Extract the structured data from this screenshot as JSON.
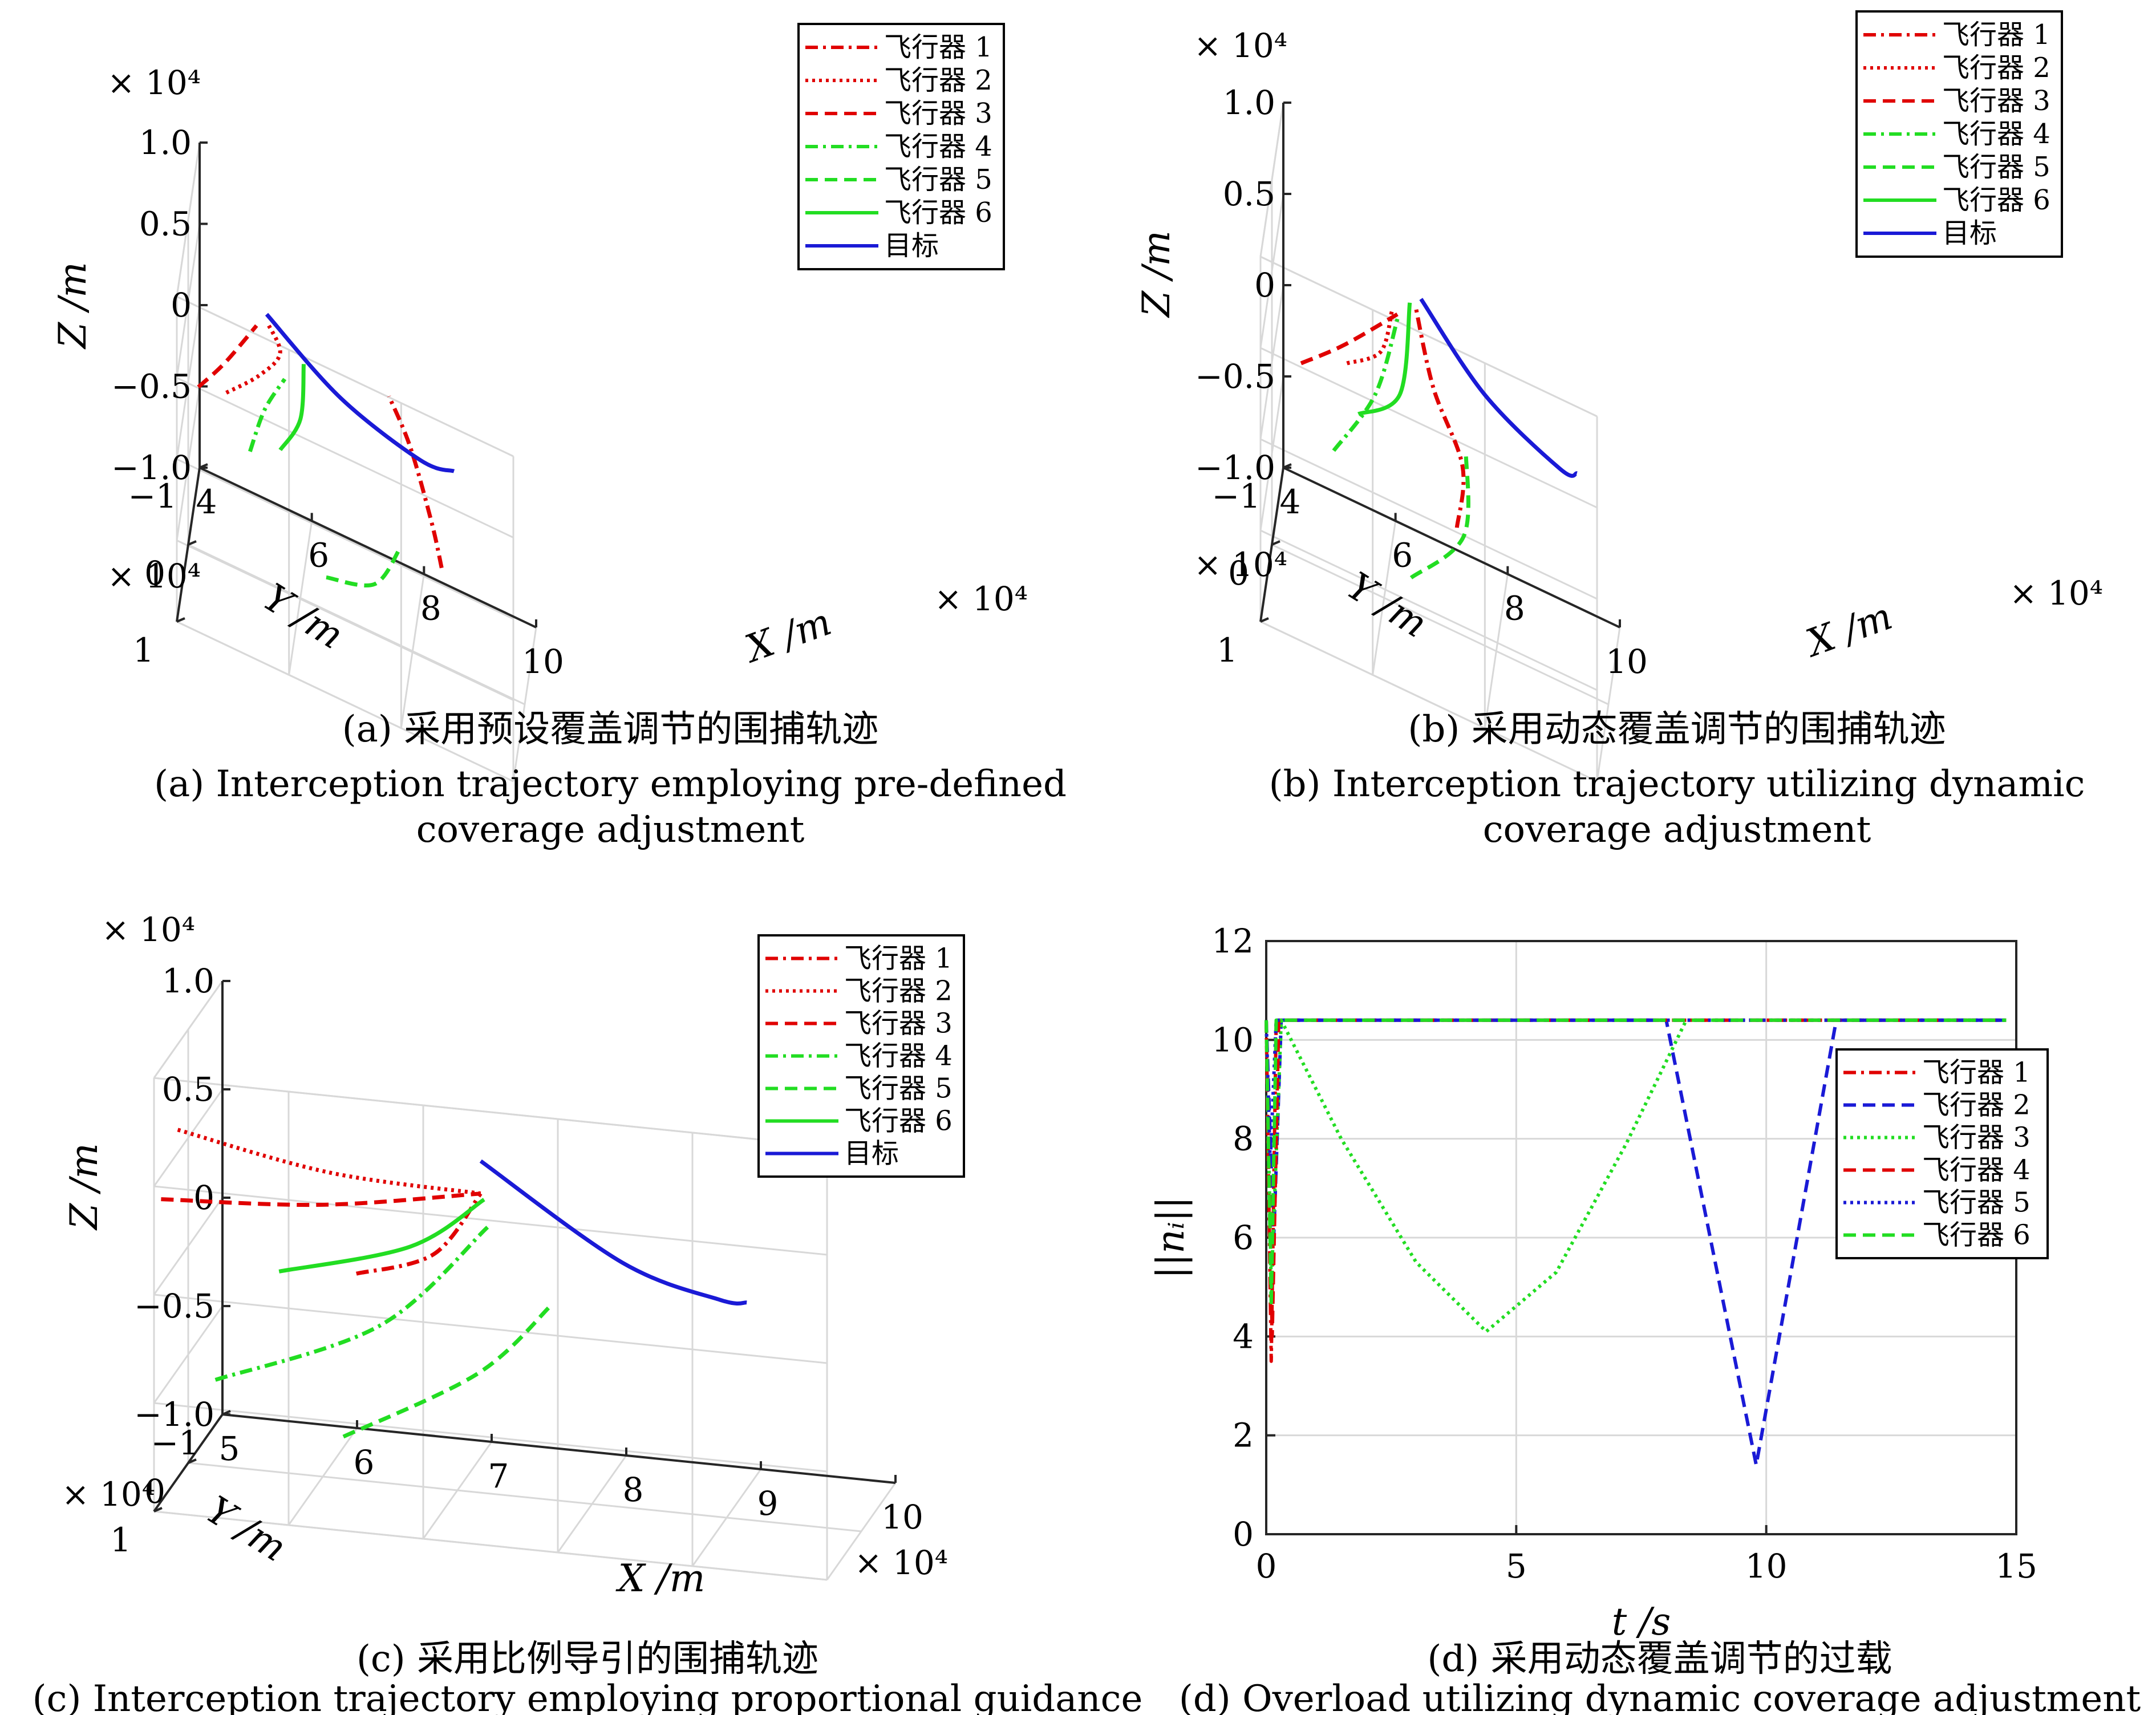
{
  "captions": {
    "a": {
      "zh": "(a) 采用预设覆盖调节的围捕轨迹",
      "en1": "(a) Interception trajectory employing pre-defined",
      "en2": "coverage adjustment"
    },
    "b": {
      "zh": "(b) 采用动态覆盖调节的围捕轨迹",
      "en1": "(b) Interception trajectory utilizing dynamic",
      "en2": "coverage adjustment"
    },
    "c": {
      "zh": "(c) 采用比例导引的围捕轨迹",
      "en1": "(c) Interception trajectory employing proportional guidance"
    },
    "d": {
      "zh": "(d) 采用动态覆盖调节的过载",
      "en1": "(d) Overload utilizing dynamic coverage adjustment"
    }
  },
  "colors": {
    "red": "#e00000",
    "green": "#22dd22",
    "blue": "#1a1ad6",
    "grid": "#d8d8d8",
    "axis": "#262626"
  },
  "chart_data": [
    {
      "id": "a",
      "type": "line",
      "projection": "3d",
      "xlabel": "X /m",
      "ylabel": "Y /m",
      "zlabel": "Z /m",
      "x_exponent": "× 10⁴",
      "y_exponent": "× 10⁴",
      "z_exponent": "× 10⁴",
      "xlim": [
        4,
        10
      ],
      "ylim": [
        -1,
        1
      ],
      "zlim": [
        -1.0,
        1.0
      ],
      "xticks": [
        "4",
        "6",
        "8",
        "10"
      ],
      "yticks": [
        "−1",
        "0",
        "1"
      ],
      "zticks": [
        "−1.0",
        "−0.5",
        "0",
        "0.5",
        "1.0"
      ],
      "legend_position": "top-right",
      "series": [
        {
          "name": "飞行器 1",
          "style": "dashdot",
          "color": "red",
          "points": [
            [
              8.6,
              0.4,
              -0.2
            ],
            [
              8.4,
              0.3,
              0.0
            ],
            [
              8.0,
              0.2,
              0.35
            ],
            [
              7.6,
              0.1,
              0.55
            ]
          ]
        },
        {
          "name": "飞行器 2",
          "style": "dotted",
          "color": "red",
          "points": [
            [
              4.8,
              0.6,
              0.35
            ],
            [
              5.4,
              0.7,
              0.6
            ],
            [
              5.8,
              0.8,
              0.85
            ],
            [
              5.6,
              0.9,
              1.05
            ]
          ]
        },
        {
          "name": "飞行器 3",
          "style": "dashed",
          "color": "red",
          "points": [
            [
              4.2,
              0.1,
              0.05
            ],
            [
              4.7,
              0.25,
              0.35
            ],
            [
              5.3,
              0.4,
              0.75
            ]
          ]
        },
        {
          "name": "飞行器 4",
          "style": "dashdot",
          "color": "green",
          "points": [
            [
              5.0,
              -0.5,
              -0.5
            ],
            [
              5.3,
              -0.3,
              -0.1
            ],
            [
              5.7,
              -0.1,
              0.25
            ]
          ]
        },
        {
          "name": "飞行器 5",
          "style": "dashed",
          "color": "green",
          "points": [
            [
              6.4,
              -0.3,
              -0.95
            ],
            [
              7.3,
              -0.1,
              -0.75
            ],
            [
              7.8,
              0.1,
              -0.35
            ]
          ]
        },
        {
          "name": "飞行器 6",
          "style": "solid",
          "color": "green",
          "points": [
            [
              5.6,
              -0.2,
              -0.25
            ],
            [
              6.0,
              0.0,
              0.1
            ],
            [
              6.1,
              0.2,
              0.55
            ]
          ]
        },
        {
          "name": "目标",
          "style": "solid",
          "color": "blue",
          "points": [
            [
              5.5,
              0.5,
              0.9
            ],
            [
              6.8,
              0.4,
              0.55
            ],
            [
              8.2,
              0.3,
              0.35
            ],
            [
              8.8,
              0.3,
              0.38
            ]
          ]
        }
      ]
    },
    {
      "id": "b",
      "type": "line",
      "projection": "3d",
      "xlabel": "X /m",
      "ylabel": "Y /m",
      "zlabel": "Z /m",
      "x_exponent": "× 10⁴",
      "y_exponent": "× 10⁴",
      "z_exponent": "× 10⁴",
      "xlim": [
        4,
        10
      ],
      "ylim": [
        -1,
        1
      ],
      "zlim": [
        -1.0,
        1.0
      ],
      "xticks": [
        "4",
        "6",
        "8",
        "10"
      ],
      "yticks": [
        "−1",
        "0",
        "1"
      ],
      "zticks": [
        "−1.0",
        "−0.5",
        "0",
        "0.5",
        "1.0"
      ],
      "legend_position": "top-right",
      "series": [
        {
          "name": "飞行器 1",
          "style": "dashdot",
          "color": "red",
          "points": [
            [
              7.4,
              0.5,
              -0.2
            ],
            [
              7.5,
              0.5,
              0.15
            ],
            [
              7.0,
              0.6,
              0.55
            ],
            [
              6.7,
              0.7,
              1.0
            ]
          ]
        },
        {
          "name": "飞行器 2",
          "style": "dotted",
          "color": "red",
          "points": [
            [
              5.5,
              0.8,
              0.55
            ],
            [
              6.1,
              0.8,
              0.7
            ],
            [
              6.3,
              0.8,
              0.95
            ]
          ]
        },
        {
          "name": "飞行器 3",
          "style": "dashed",
          "color": "red",
          "points": [
            [
              4.6,
              0.4,
              0.25
            ],
            [
              5.4,
              0.6,
              0.55
            ],
            [
              6.4,
              0.8,
              0.95
            ]
          ]
        },
        {
          "name": "飞行器 4",
          "style": "dashdot",
          "color": "green",
          "points": [
            [
              5.0,
              -0.5,
              -0.55
            ],
            [
              5.8,
              -0.2,
              0.0
            ],
            [
              6.3,
              0.3,
              0.7
            ]
          ]
        },
        {
          "name": "飞行器 5",
          "style": "dashed",
          "color": "green",
          "points": [
            [
              6.4,
              -0.4,
              -1.0
            ],
            [
              7.4,
              -0.1,
              -0.5
            ],
            [
              7.5,
              0.2,
              0.1
            ]
          ]
        },
        {
          "name": "飞行器 6",
          "style": "solid",
          "color": "green",
          "points": [
            [
              5.5,
              -0.2,
              -0.15
            ],
            [
              6.3,
              0.1,
              0.2
            ],
            [
              6.6,
              0.7,
              1.0
            ]
          ]
        },
        {
          "name": "目标",
          "style": "solid",
          "color": "blue",
          "points": [
            [
              6.8,
              0.7,
              1.05
            ],
            [
              7.9,
              0.5,
              0.6
            ],
            [
              9.2,
              0.3,
              0.3
            ],
            [
              9.5,
              0.3,
              0.32
            ]
          ]
        }
      ]
    },
    {
      "id": "c",
      "type": "line",
      "projection": "3d",
      "xlabel": "X /m",
      "ylabel": "Y /m",
      "zlabel": "Z /m",
      "x_exponent": "× 10⁴",
      "y_exponent": "× 10⁴",
      "z_exponent": "× 10⁴",
      "xlim": [
        5,
        10
      ],
      "ylim": [
        -1,
        1
      ],
      "zlim": [
        -1.0,
        1.0
      ],
      "xticks": [
        "5",
        "6",
        "7",
        "8",
        "9",
        "10"
      ],
      "yticks": [
        "−1",
        "0",
        "1"
      ],
      "zticks": [
        "−1.0",
        "−0.5",
        "0",
        "0.5",
        "1.0"
      ],
      "legend_position": "top-right",
      "series": [
        {
          "name": "飞行器 1",
          "style": "dashdot",
          "color": "red",
          "points": [
            [
              6.3,
              0.2,
              0.0
            ],
            [
              6.9,
              0.3,
              0.15
            ],
            [
              7.3,
              0.5,
              0.5
            ]
          ]
        },
        {
          "name": "飞行器 2",
          "style": "dotted",
          "color": "red",
          "points": [
            [
              5.1,
              0.7,
              0.7
            ],
            [
              6.2,
              0.6,
              0.55
            ],
            [
              7.3,
              0.5,
              0.5
            ]
          ]
        },
        {
          "name": "飞行器 3",
          "style": "dashed",
          "color": "red",
          "points": [
            [
              4.9,
              0.4,
              0.3
            ],
            [
              6.1,
              0.4,
              0.35
            ],
            [
              7.3,
              0.5,
              0.5
            ]
          ]
        },
        {
          "name": "飞行器 4",
          "style": "dashdot",
          "color": "green",
          "points": [
            [
              5.1,
              -0.4,
              -0.7
            ],
            [
              6.4,
              -0.1,
              -0.3
            ],
            [
              7.3,
              0.3,
              0.3
            ]
          ]
        },
        {
          "name": "飞行器 5",
          "style": "dashed",
          "color": "green",
          "points": [
            [
              6.0,
              -0.6,
              -0.95
            ],
            [
              7.1,
              -0.2,
              -0.5
            ],
            [
              7.7,
              0.0,
              -0.1
            ]
          ]
        },
        {
          "name": "飞行器 6",
          "style": "solid",
          "color": "green",
          "points": [
            [
              5.7,
              0.1,
              -0.05
            ],
            [
              6.7,
              0.2,
              0.15
            ],
            [
              7.3,
              0.4,
              0.45
            ]
          ]
        },
        {
          "name": "目标",
          "style": "solid",
          "color": "blue",
          "points": [
            [
              7.3,
              0.5,
              0.65
            ],
            [
              8.3,
              0.3,
              0.2
            ],
            [
              9.0,
              0.2,
              0.05
            ],
            [
              9.2,
              0.2,
              0.05
            ]
          ]
        }
      ]
    },
    {
      "id": "d",
      "type": "line",
      "xlabel": "t /s",
      "ylabel": "||nᵢ||",
      "xlim": [
        0,
        15
      ],
      "ylim": [
        0,
        12
      ],
      "xticks": [
        0,
        5,
        10,
        15
      ],
      "yticks": [
        0,
        2,
        4,
        6,
        8,
        10,
        12
      ],
      "grid": true,
      "legend_position": "right",
      "series": [
        {
          "name": "飞行器 1",
          "style": "dashdot",
          "color": "red",
          "x": [
            0,
            0.1,
            0.2,
            0.3,
            14.8
          ],
          "y": [
            10.4,
            3.5,
            10.4,
            10.4,
            10.4
          ]
        },
        {
          "name": "飞行器 2",
          "style": "dashed",
          "color": "blue",
          "x": [
            0,
            0.15,
            0.3,
            8.0,
            9.8,
            11.4,
            14.8
          ],
          "y": [
            10.4,
            6.0,
            10.4,
            10.4,
            1.4,
            10.4,
            10.4
          ]
        },
        {
          "name": "飞行器 3",
          "style": "dotted",
          "color": "green",
          "x": [
            0,
            0.1,
            0.3,
            1.5,
            3.0,
            4.4,
            5.8,
            7.2,
            8.4,
            14.8
          ],
          "y": [
            10.4,
            5.0,
            10.4,
            8.0,
            5.5,
            4.1,
            5.3,
            7.9,
            10.4,
            10.4
          ]
        },
        {
          "name": "飞行器 4",
          "style": "dashed",
          "color": "red",
          "x": [
            0,
            0.12,
            0.25,
            14.8
          ],
          "y": [
            10.4,
            4.0,
            10.4,
            10.4
          ]
        },
        {
          "name": "飞行器 5",
          "style": "dotted",
          "color": "blue",
          "x": [
            0,
            0.08,
            0.2,
            14.8
          ],
          "y": [
            10.4,
            7.5,
            10.4,
            10.4
          ]
        },
        {
          "name": "飞行器 6",
          "style": "dashed",
          "color": "green",
          "x": [
            0,
            0.1,
            0.2,
            14.8
          ],
          "y": [
            10.4,
            4.6,
            10.4,
            10.4
          ]
        }
      ]
    }
  ]
}
